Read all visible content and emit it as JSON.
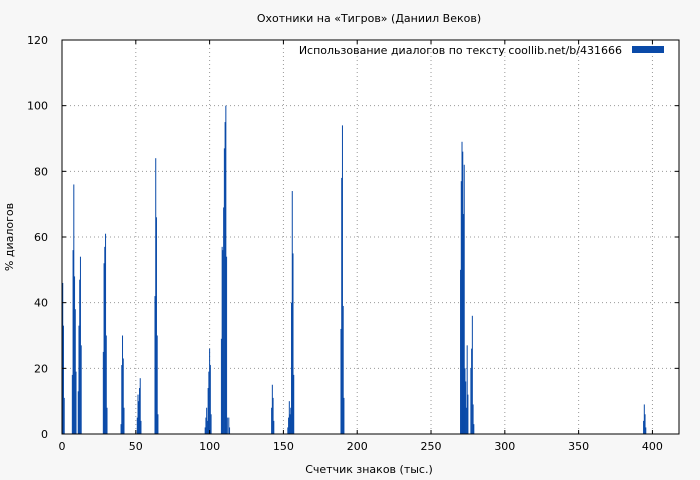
{
  "chart_data": {
    "type": "bar",
    "title": "Охотники на «Тигров» (Даниил Веков)",
    "xlabel": "Счетчик знаков (тыс.)",
    "ylabel": "% диалогов",
    "legend": "Использование диалогов по тексту  coollib.net/b/431666",
    "legend_position": "top-right",
    "grid": true,
    "xlim": [
      0,
      418
    ],
    "ylim": [
      0,
      120
    ],
    "xticks": [
      0,
      50,
      100,
      150,
      200,
      250,
      300,
      350,
      400
    ],
    "yticks": [
      0,
      20,
      40,
      60,
      80,
      100,
      120
    ],
    "series_color": "#0a4aa8",
    "points": [
      [
        0.5,
        46
      ],
      [
        1,
        33
      ],
      [
        1.5,
        11
      ],
      [
        7,
        18
      ],
      [
        7.5,
        56
      ],
      [
        8,
        76
      ],
      [
        8.5,
        48
      ],
      [
        9,
        38
      ],
      [
        9.5,
        19
      ],
      [
        11,
        13
      ],
      [
        11.5,
        33
      ],
      [
        12,
        47
      ],
      [
        12.5,
        54
      ],
      [
        13,
        27
      ],
      [
        28,
        25
      ],
      [
        28.5,
        52
      ],
      [
        29,
        57
      ],
      [
        29.5,
        61
      ],
      [
        30,
        30
      ],
      [
        30.5,
        8
      ],
      [
        40,
        3
      ],
      [
        40.5,
        21
      ],
      [
        41,
        30
      ],
      [
        41.5,
        23
      ],
      [
        42,
        8
      ],
      [
        51,
        5
      ],
      [
        51.5,
        12
      ],
      [
        52,
        10
      ],
      [
        52.5,
        14
      ],
      [
        53,
        17
      ],
      [
        53.5,
        4
      ],
      [
        63,
        42
      ],
      [
        63.5,
        84
      ],
      [
        64,
        66
      ],
      [
        64.5,
        30
      ],
      [
        65,
        6
      ],
      [
        97,
        2
      ],
      [
        97.5,
        5
      ],
      [
        98,
        8
      ],
      [
        98.5,
        4
      ],
      [
        99,
        14
      ],
      [
        99.5,
        19
      ],
      [
        100,
        26
      ],
      [
        100.5,
        21
      ],
      [
        101,
        6
      ],
      [
        108,
        29
      ],
      [
        108.5,
        57
      ],
      [
        109,
        56
      ],
      [
        109.5,
        69
      ],
      [
        110,
        87
      ],
      [
        110.5,
        95
      ],
      [
        111,
        100
      ],
      [
        111.5,
        54
      ],
      [
        112,
        5
      ],
      [
        113,
        5
      ],
      [
        113.5,
        2
      ],
      [
        142,
        8
      ],
      [
        142.5,
        15
      ],
      [
        143,
        11
      ],
      [
        143.5,
        4
      ],
      [
        153,
        2
      ],
      [
        153.5,
        5
      ],
      [
        154,
        10
      ],
      [
        154.5,
        6
      ],
      [
        155,
        8
      ],
      [
        155.5,
        40
      ],
      [
        156,
        74
      ],
      [
        156.5,
        55
      ],
      [
        157,
        18
      ],
      [
        189,
        32
      ],
      [
        189.5,
        78
      ],
      [
        190,
        94
      ],
      [
        190.5,
        39
      ],
      [
        191,
        11
      ],
      [
        270,
        50
      ],
      [
        270.5,
        77
      ],
      [
        271,
        89
      ],
      [
        271.5,
        86
      ],
      [
        272,
        67
      ],
      [
        272.5,
        82
      ],
      [
        273,
        20
      ],
      [
        273.5,
        16
      ],
      [
        274,
        8
      ],
      [
        274.5,
        27
      ],
      [
        275,
        12
      ],
      [
        277,
        20
      ],
      [
        277.5,
        26
      ],
      [
        278,
        36
      ],
      [
        278.5,
        9
      ],
      [
        279,
        3
      ],
      [
        394,
        4
      ],
      [
        394.5,
        9
      ],
      [
        395,
        6
      ],
      [
        395.5,
        2
      ]
    ]
  }
}
